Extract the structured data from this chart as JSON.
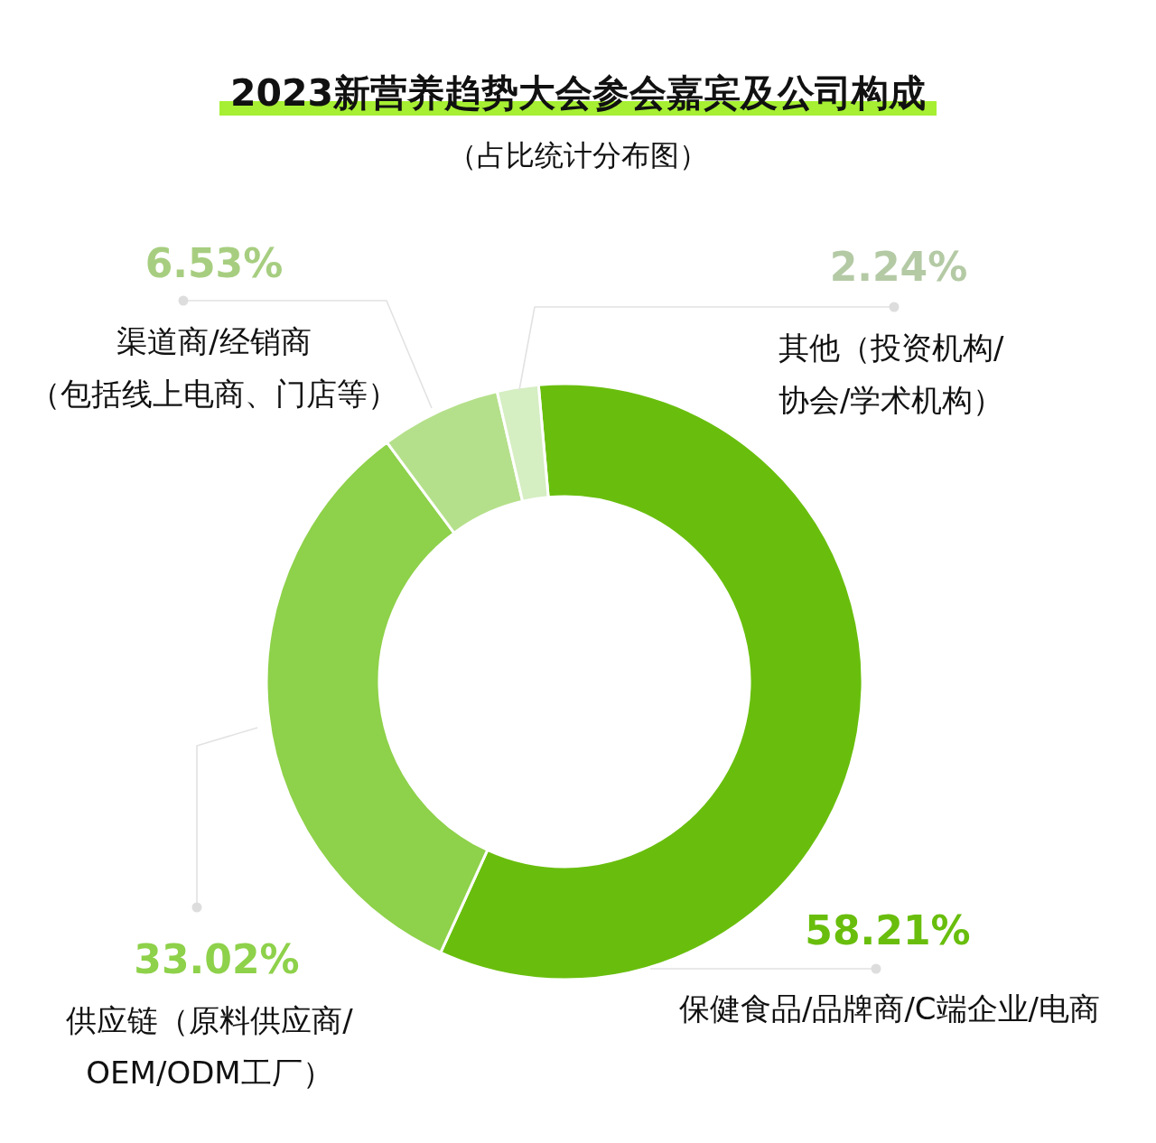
{
  "chart_data": {
    "type": "donut",
    "title": "2023新营养趋势大会参会嘉宾及公司构成",
    "subtitle": "（占比统计分布图）",
    "categories": [
      "保健食品/品牌商/C端企业/电商",
      "供应链（原料供应商/OEM/ODM工厂）",
      "渠道商/经销商（包括线上电商、门店等）",
      "其他（投资机构/协会/学术机构）"
    ],
    "values": [
      58.21,
      33.02,
      6.53,
      2.24
    ],
    "colors": [
      "#69be0d",
      "#8ed14a",
      "#b5e08b",
      "#d5eec2"
    ],
    "value_labels": [
      "58.21%",
      "33.02%",
      "6.53%",
      "2.24%"
    ]
  }
}
